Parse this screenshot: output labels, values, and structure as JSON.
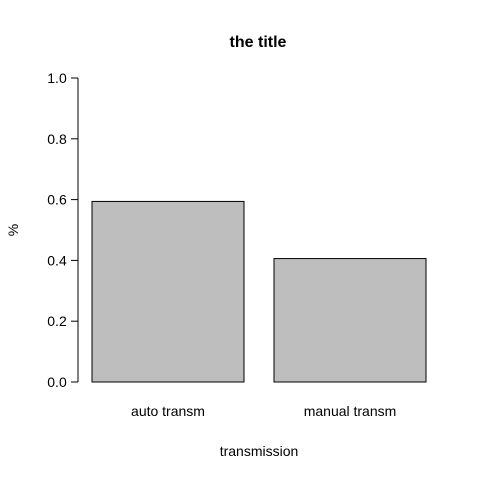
{
  "chart_data": {
    "type": "bar",
    "title": "the title",
    "xlabel": "transmission",
    "ylabel": "%",
    "categories": [
      "auto transm",
      "manual transm"
    ],
    "values": [
      0.594,
      0.406
    ],
    "ylim": [
      0,
      1
    ],
    "yticks": [
      "0.0",
      "0.2",
      "0.4",
      "0.6",
      "0.8",
      "1.0"
    ],
    "bar_color": "#bebebe",
    "grid": false,
    "legend": "none"
  }
}
